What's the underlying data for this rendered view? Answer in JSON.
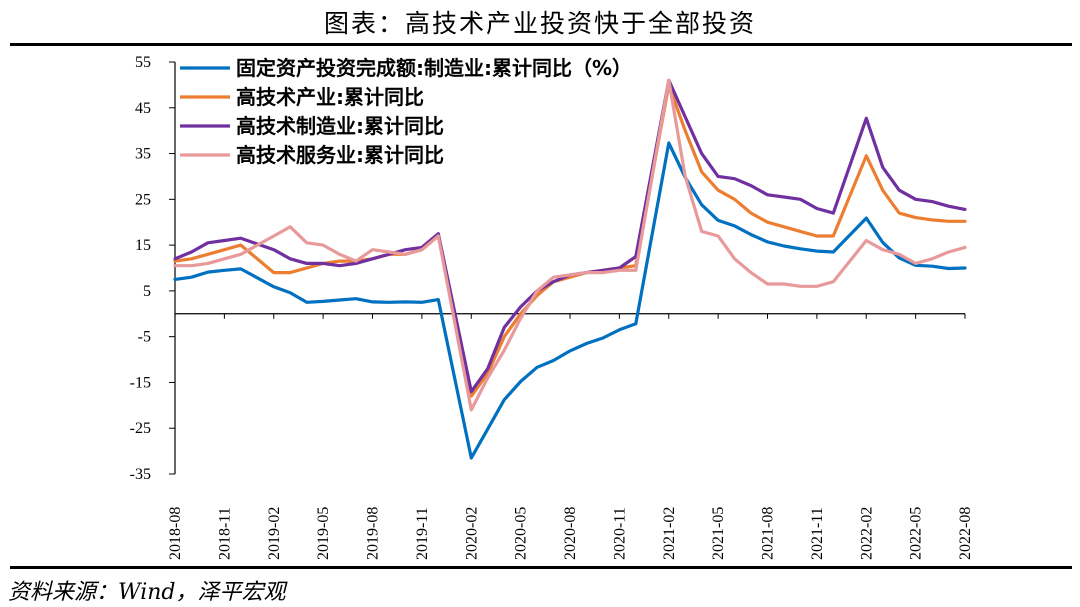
{
  "title": "图表：高技术产业投资快于全部投资",
  "source": "资料来源：Wind，泽平宏观",
  "chart_data": {
    "type": "line",
    "ylim": [
      -35,
      55
    ],
    "yticks": [
      55,
      45,
      35,
      25,
      15,
      5,
      -5,
      -15,
      -25,
      -35
    ],
    "x": [
      "2018-08",
      "2018-09",
      "2018-10",
      "2018-11",
      "2018-12",
      "2019-01",
      "2019-02",
      "2019-03",
      "2019-04",
      "2019-05",
      "2019-06",
      "2019-07",
      "2019-08",
      "2019-09",
      "2019-10",
      "2019-11",
      "2019-12",
      "2020-01",
      "2020-02",
      "2020-03",
      "2020-04",
      "2020-05",
      "2020-06",
      "2020-07",
      "2020-08",
      "2020-09",
      "2020-10",
      "2020-11",
      "2020-12",
      "2021-01",
      "2021-02",
      "2021-03",
      "2021-04",
      "2021-05",
      "2021-06",
      "2021-07",
      "2021-08",
      "2021-09",
      "2021-10",
      "2021-11",
      "2021-12",
      "2022-01",
      "2022-02",
      "2022-03",
      "2022-04",
      "2022-05",
      "2022-06",
      "2022-07",
      "2022-08"
    ],
    "xtick_labels": [
      "2018-08",
      "2018-11",
      "2019-02",
      "2019-05",
      "2019-08",
      "2019-11",
      "2020-02",
      "2020-05",
      "2020-08",
      "2020-11",
      "2021-02",
      "2021-05",
      "2021-08",
      "2021-11",
      "2022-02",
      "2022-05",
      "2022-08"
    ],
    "series": [
      {
        "name": "固定资产投资完成额:制造业:累计同比（%）",
        "color": "#0070C0",
        "values": [
          7.5,
          8.0,
          9.1,
          9.5,
          9.8,
          null,
          5.9,
          4.6,
          2.5,
          2.7,
          3.0,
          3.3,
          2.6,
          2.5,
          2.6,
          2.5,
          3.1,
          null,
          -31.5,
          -25.2,
          -18.8,
          -14.8,
          -11.7,
          -10.2,
          -8.1,
          -6.5,
          -5.3,
          -3.5,
          -2.2,
          null,
          37.3,
          29.8,
          23.8,
          20.4,
          19.2,
          17.3,
          15.7,
          14.8,
          14.2,
          13.7,
          13.5,
          null,
          20.9,
          15.6,
          12.2,
          10.6,
          10.4,
          9.9,
          10.0
        ]
      },
      {
        "name": "高技术产业:累计同比",
        "color": "#ED7D31",
        "values": [
          11.5,
          12.0,
          13.0,
          14.0,
          15.0,
          null,
          9.0,
          9.0,
          10.0,
          11.0,
          11.5,
          11.5,
          12.0,
          13.0,
          13.0,
          14.0,
          17.0,
          null,
          -18.0,
          -13.0,
          -5.0,
          0.0,
          4.0,
          7.0,
          8.0,
          9.0,
          9.5,
          10.0,
          10.5,
          null,
          50.0,
          40.0,
          31.0,
          27.0,
          25.0,
          22.0,
          20.0,
          19.0,
          18.0,
          17.0,
          17.0,
          null,
          34.5,
          27.0,
          22.0,
          21.0,
          20.5,
          20.2,
          20.2
        ]
      },
      {
        "name": "高技术制造业:累计同比",
        "color": "#7030A0",
        "values": [
          12.0,
          13.5,
          15.5,
          16.0,
          16.5,
          null,
          14.0,
          12.0,
          11.0,
          11.0,
          10.5,
          11.0,
          12.0,
          13.0,
          14.0,
          14.5,
          17.5,
          null,
          -17.0,
          -12.0,
          -3.0,
          1.5,
          5.0,
          7.0,
          8.5,
          9.0,
          9.5,
          10.0,
          12.5,
          null,
          51.0,
          43.0,
          35.0,
          30.0,
          29.5,
          28.0,
          26.0,
          25.5,
          25.0,
          23.0,
          22.0,
          null,
          42.7,
          32.0,
          27.0,
          25.0,
          24.5,
          23.5,
          22.8
        ]
      },
      {
        "name": "高技术服务业:累计同比",
        "color": "#E89A9A",
        "values": [
          10.5,
          10.5,
          11.0,
          12.0,
          13.0,
          null,
          17.0,
          19.0,
          15.5,
          15.0,
          13.0,
          11.5,
          14.0,
          13.5,
          13.0,
          14.0,
          17.0,
          null,
          -21.0,
          -14.0,
          -8.0,
          -1.0,
          5.0,
          8.0,
          8.5,
          9.0,
          9.0,
          9.5,
          9.5,
          null,
          51.0,
          30.0,
          18.0,
          17.0,
          12.0,
          9.0,
          6.5,
          6.5,
          6.0,
          6.0,
          7.0,
          null,
          16.0,
          14.0,
          13.0,
          11.0,
          12.0,
          13.5,
          14.5
        ]
      }
    ]
  }
}
